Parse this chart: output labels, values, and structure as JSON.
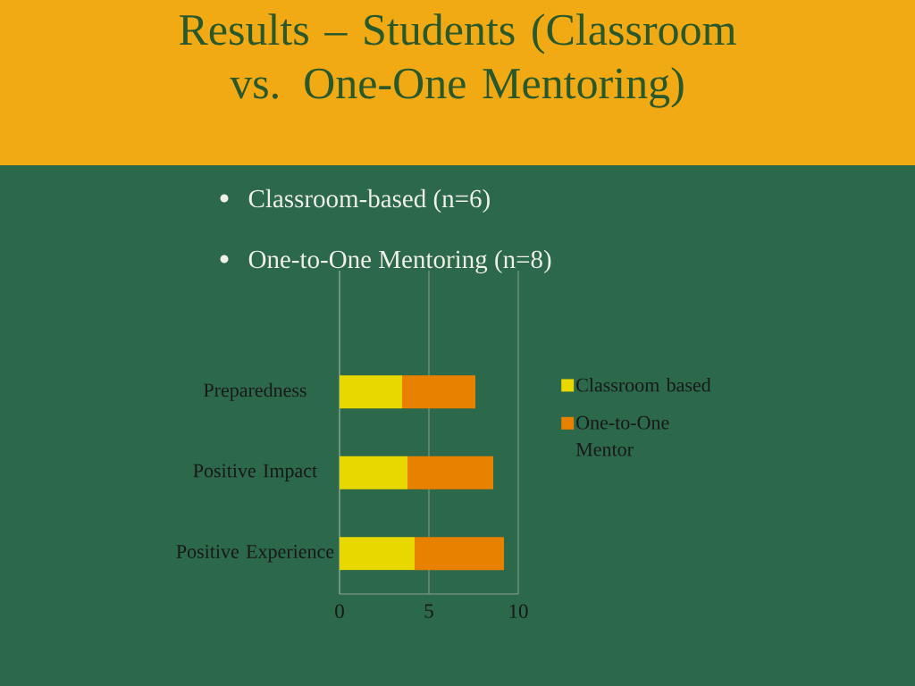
{
  "chart_data": {
    "type": "bar",
    "orientation": "horizontal",
    "stacked": true,
    "title": "Results – Students (Classroom vs. One-One Mentoring)",
    "annotations": [
      "Classroom-based (n=6)",
      "One-to-One Mentoring (n=8)"
    ],
    "categories": [
      null,
      "Preparedness",
      "Positive Impact",
      "Positive Experience"
    ],
    "series": [
      {
        "name": "Classroom based",
        "color": "#e8d800",
        "values": [
          null,
          3.5,
          3.8,
          4.2
        ]
      },
      {
        "name": "One-to-One Mentor",
        "color": "#e88000",
        "values": [
          null,
          4.1,
          4.8,
          5.0
        ]
      }
    ],
    "xlim": [
      0,
      10
    ],
    "xticks": [
      0,
      5,
      10
    ],
    "grid": "x",
    "legend": "right"
  }
}
